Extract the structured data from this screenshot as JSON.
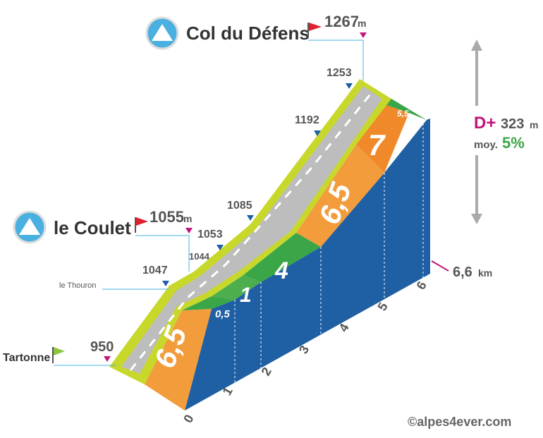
{
  "summit": {
    "name": "Col du Défens",
    "altitude": "1267",
    "unit": "m"
  },
  "midpoint": {
    "name": "le Coulet",
    "altitude": "1055",
    "unit": "m"
  },
  "start": {
    "name": "Tartonne",
    "altitude": "950"
  },
  "hamlet": "le Thouron",
  "altitudes": [
    "1253",
    "1192",
    "1085",
    "1053",
    "1044",
    "1047"
  ],
  "gradients": [
    "6,5",
    "0,5",
    "1",
    "4",
    "6,5",
    "7",
    "5,5"
  ],
  "km": [
    "0",
    "1",
    "2",
    "3",
    "4",
    "5",
    "6"
  ],
  "distance": {
    "value": "6,6",
    "unit": "km"
  },
  "stats": {
    "gain_label": "D+",
    "gain": "323",
    "gain_unit": "m",
    "avg_label": "moy.",
    "avg": "5%"
  },
  "credit": "©alpes4ever.com"
}
